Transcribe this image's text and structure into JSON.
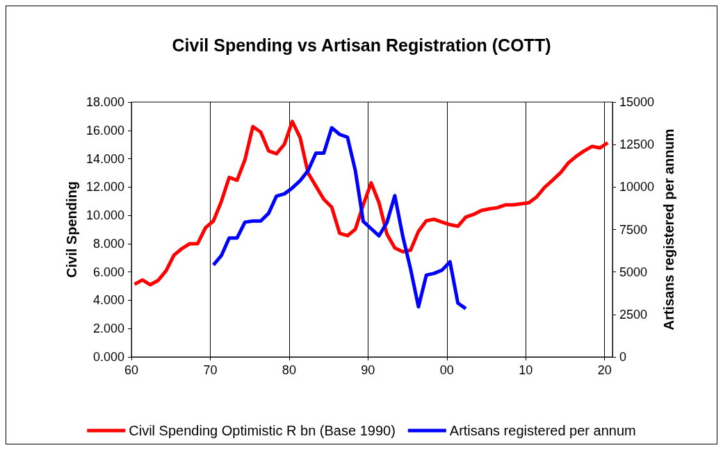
{
  "chart_data": {
    "type": "line",
    "title": "Civil Spending vs Artisan Registration (COTT)",
    "ylabel": "Civil Spending",
    "y2label": "Artisans registered per annum",
    "xlim": [
      1960,
      2021
    ],
    "xticks": [
      {
        "value": 1960,
        "label": "60"
      },
      {
        "value": 1970,
        "label": "70"
      },
      {
        "value": 1980,
        "label": "80"
      },
      {
        "value": 1990,
        "label": "90"
      },
      {
        "value": 2000,
        "label": "00"
      },
      {
        "value": 2010,
        "label": "10"
      },
      {
        "value": 2020,
        "label": "20"
      }
    ],
    "ylim": [
      0,
      18
    ],
    "yticks": [
      {
        "value": 0,
        "label": "0.000"
      },
      {
        "value": 2,
        "label": "2.000"
      },
      {
        "value": 4,
        "label": "4.000"
      },
      {
        "value": 6,
        "label": "6.000"
      },
      {
        "value": 8,
        "label": "8.000"
      },
      {
        "value": 10,
        "label": "10.000"
      },
      {
        "value": 12,
        "label": "12.000"
      },
      {
        "value": 14,
        "label": "14.000"
      },
      {
        "value": 16,
        "label": "16.000"
      },
      {
        "value": 18,
        "label": "18.000"
      }
    ],
    "y2lim": [
      0,
      15000
    ],
    "y2ticks": [
      0,
      2500,
      5000,
      7500,
      10000,
      12500,
      15000
    ],
    "grid": "x",
    "legend": "bottom",
    "marker": "none",
    "line_style": "solid",
    "series": [
      {
        "name": "Civil Spending Optimistic R bn (Base 1990)",
        "color": "#ff0000",
        "x": [
          1960.4,
          1961.4,
          1962.4,
          1963.4,
          1964.4,
          1965.4,
          1966.4,
          1967.4,
          1968.4,
          1969.4,
          1970.4,
          1971.4,
          1972.4,
          1973.4,
          1974.4,
          1975.4,
          1976.4,
          1977.4,
          1978.4,
          1979.4,
          1980.4,
          1981.4,
          1982.4,
          1983.4,
          1984.4,
          1985.4,
          1986.4,
          1987.4,
          1988.4,
          1989.4,
          1990.4,
          1991.4,
          1992.4,
          1993.4,
          1994.4,
          1995.4,
          1996.4,
          1997.4,
          1998.4,
          1999.4,
          2000.4,
          2001.4,
          2002.4,
          2003.4,
          2004.4,
          2005.4,
          2006.4,
          2007.4,
          2008.4,
          2009.4,
          2010.4,
          2011.4,
          2012.4,
          2013.4,
          2014.4,
          2015.4,
          2016.4,
          2017.4,
          2018.4,
          2019.4,
          2020.4
        ],
        "values": [
          5.13,
          5.44,
          5.1,
          5.41,
          6.09,
          7.19,
          7.65,
          8.0,
          8.0,
          9.13,
          9.6,
          10.97,
          12.68,
          12.48,
          13.93,
          16.27,
          15.88,
          14.55,
          14.35,
          15.02,
          16.63,
          15.49,
          13.0,
          12.06,
          11.13,
          10.58,
          8.74,
          8.56,
          9.02,
          10.74,
          12.3,
          10.89,
          8.68,
          7.7,
          7.43,
          7.54,
          8.87,
          9.62,
          9.72,
          9.52,
          9.34,
          9.23,
          9.88,
          10.07,
          10.35,
          10.46,
          10.54,
          10.74,
          10.74,
          10.81,
          10.89,
          11.31,
          11.98,
          12.48,
          13.0,
          13.7,
          14.17,
          14.55,
          14.87,
          14.76,
          15.13
        ]
      },
      {
        "name": "Artisans registered per annum",
        "color": "#0000ff",
        "axis": "y2",
        "x": [
          1970.4,
          1971.4,
          1972.4,
          1973.4,
          1974.4,
          1975.4,
          1976.4,
          1977.4,
          1978.4,
          1979.4,
          1980.4,
          1981.4,
          1982.4,
          1983.4,
          1984.4,
          1985.4,
          1986.4,
          1987.4,
          1988.4,
          1989.4,
          1990.4,
          1991.4,
          1992.4,
          1993.4,
          1994.4,
          1995.4,
          1996.4,
          1997.4,
          1998.4,
          1999.4,
          2000.4,
          2001.4,
          2002.4
        ],
        "values": [
          5415,
          5960,
          7000,
          7000,
          7935,
          8000,
          8000,
          8455,
          9470,
          9600,
          9945,
          10375,
          10960,
          12000,
          12000,
          13490,
          13100,
          12935,
          10960,
          7975,
          7550,
          7130,
          7910,
          9495,
          7130,
          5180,
          2950,
          4820,
          4920,
          5115,
          5600,
          3170,
          2845
        ]
      }
    ]
  }
}
